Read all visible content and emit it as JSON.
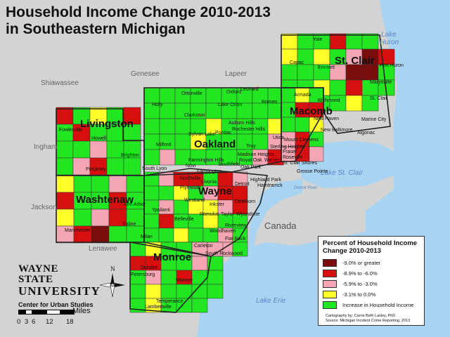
{
  "title": {
    "line1": "Household Income Change 2010-2013",
    "line2": "in Southeastern Michigan"
  },
  "counties": [
    "Livingston",
    "Oakland",
    "Macomb",
    "St. Clair",
    "Washtenaw",
    "Wayne",
    "Monroe"
  ],
  "neighbors": [
    "Genesee",
    "Lapeer",
    "Shiawassee",
    "Ingham",
    "Jackson",
    "Lenawee",
    "Canada"
  ],
  "water": {
    "lake_huron_1": "Lake",
    "lake_huron_2": "Huron",
    "lake_st_clair": "Lake St. Clair",
    "lake_erie": "Lake Erie",
    "detroit_river": "Detroit River"
  },
  "cities": [
    "Yale",
    "Capac",
    "Emmett",
    "Port Huron",
    "Marysville",
    "St. Clair",
    "Armada",
    "Richmond",
    "Marine City",
    "Algonac",
    "New Baltimore",
    "Romeo",
    "Oxford",
    "Leonard",
    "Ortonville",
    "Holly",
    "Lake Orion",
    "Clarkston",
    "Auburn Hills",
    "Rochester Hills",
    "Sylvan Lake",
    "Pontiac",
    "Milford",
    "Troy",
    "Utica",
    "Sterling Heights",
    "Mount Clemens",
    "Fowlerville",
    "Howell",
    "Brighton",
    "Pinckney",
    "South Lyon",
    "Farmington Hills",
    "Farmington",
    "Novi",
    "Northville",
    "Plymouth",
    "Livonia",
    "Southfield",
    "Madison Heights",
    "Royal Oak",
    "Oak Park",
    "Warren",
    "Fraser",
    "Roseville",
    "St. Clair Shores",
    "Grosse Pointe",
    "Highland Park",
    "Hamtramck",
    "Detroit",
    "Westland",
    "Inkster",
    "Dearborn",
    "Ann Arbor",
    "Ypsilanti",
    "Belleville",
    "Romulus",
    "Taylor",
    "Wyandotte",
    "Saline",
    "Manchester",
    "Milan",
    "Riverview",
    "Woodhaven",
    "Flat Rock",
    "Carleton",
    "South Rockwood",
    "Petersburg",
    "Dundee",
    "Monroe",
    "Temperance",
    "Lambertville",
    "New Haven"
  ],
  "legend": {
    "title": "Percent of Household Income Change 2010-2013",
    "items": [
      {
        "label": "-9.0% or greater",
        "color": "#7b0c0c"
      },
      {
        "label": "-8.9% to -6.0%",
        "color": "#d80f0f"
      },
      {
        "label": "-5.9% to -3.0%",
        "color": "#f4a6b4"
      },
      {
        "label": "-3.1%  to 0.0%",
        "color": "#ffff2a"
      },
      {
        "label": "Increase in Household Income",
        "color": "#22e622"
      }
    ],
    "credit1": "Cartography by:  Carrie Beth Lasley, PhD",
    "credit2": "Source:  Michigan Incident Crime Reporting, 2013"
  },
  "logo": {
    "line1": "WAYNE STATE",
    "line2": "UNIVERSITY",
    "line3": "Center for Urban Studies"
  },
  "scale": {
    "unit": "Miles",
    "ticks": [
      "0",
      "3",
      "6",
      "12",
      "18"
    ]
  },
  "north_label": "N",
  "colors": {
    "background": "#c8c8c8",
    "water": "#a9d4f1",
    "land_gray": "#d3d3d3",
    "red_dark": "#7b0c0c",
    "red": "#d80f0f",
    "pink": "#f4a6b4",
    "yellow": "#ffff2a",
    "green": "#22e622"
  }
}
